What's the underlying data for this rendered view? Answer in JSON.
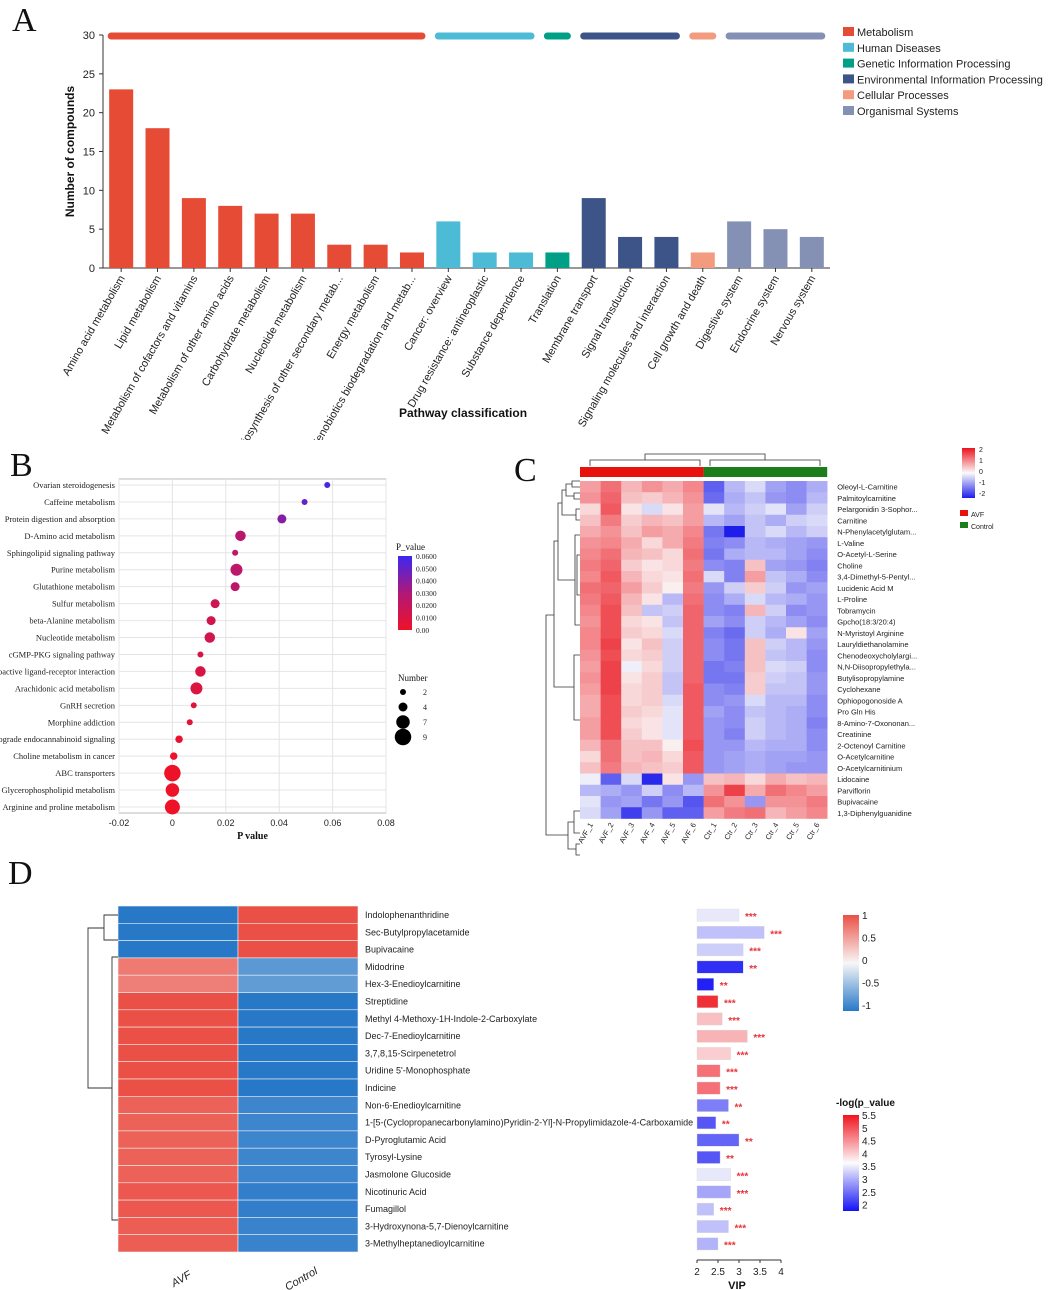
{
  "panels": {
    "A": "A",
    "B": "B",
    "C": "C",
    "D": "D"
  },
  "chart_data": [
    {
      "id": "A",
      "type": "bar",
      "ylabel": "Number of compounds",
      "xlabel": "Pathway classification",
      "ylim": [
        0,
        30
      ],
      "yticks": [
        0,
        5,
        10,
        15,
        20,
        25,
        30
      ],
      "categories": [
        "Amino acid metabolism",
        "Lipid metabolism",
        "Metabolism of cofactors and vitamins",
        "Metabolism of other amino acids",
        "Carbohydrate metabolism",
        "Nucleotide metabolism",
        "Biosynthesis of other secondary metab...",
        "Energy metabolism",
        "Xenobiotics biodegradation and metab...",
        "Cancer: overview",
        "Drug resistance: antineoplastic",
        "Substance dependence",
        "Translation",
        "Membrane transport",
        "Signal transduction",
        "Signaling molecules and interaction",
        "Cell growth and death",
        "Digestive system",
        "Endocrine system",
        "Nervous system"
      ],
      "values": [
        23,
        18,
        9,
        8,
        7,
        7,
        3,
        3,
        2,
        6,
        2,
        2,
        2,
        9,
        4,
        4,
        2,
        6,
        5,
        4
      ],
      "groups": [
        0,
        0,
        0,
        0,
        0,
        0,
        0,
        0,
        0,
        1,
        1,
        1,
        2,
        3,
        3,
        3,
        4,
        5,
        5,
        5
      ],
      "legend": [
        {
          "label": "Metabolism",
          "color": "#e64b35"
        },
        {
          "label": "Human Diseases",
          "color": "#4dbbd5"
        },
        {
          "label": "Genetic Information Processing",
          "color": "#00a087"
        },
        {
          "label": "Environmental Information Processing",
          "color": "#3c5488"
        },
        {
          "label": "Cellular Processes",
          "color": "#f39b7f"
        },
        {
          "label": "Organismal Systems",
          "color": "#8491b4"
        }
      ]
    },
    {
      "id": "B",
      "type": "scatter",
      "xlabel": "P value",
      "xlim": [
        -0.02,
        0.08
      ],
      "xticks": [
        "-0.02",
        "0",
        "0.02",
        "0.04",
        "0.06",
        "0.08"
      ],
      "categories": [
        "Ovarian steroidogenesis",
        "Caffeine metabolism",
        "Protein digestion and absorption",
        "D-Amino acid metabolism",
        "Sphingolipid signaling pathway",
        "Purine metabolism",
        "Glutathione metabolism",
        "Sulfur metabolism",
        "beta-Alanine metabolism",
        "Nucleotide metabolism",
        "cGMP-PKG signaling pathway",
        "Neuroactive ligand-receptor interaction",
        "Arachidonic acid metabolism",
        "GnRH secretion",
        "Morphine addiction",
        "Retrograde endocannabinoid signaling",
        "Choline metabolism in cancer",
        "ABC transporters",
        "Glycerophospholipid metabolism",
        "Arginine and proline metabolism"
      ],
      "pvalues": [
        0.058,
        0.0495,
        0.041,
        0.0255,
        0.0235,
        0.024,
        0.0235,
        0.016,
        0.0145,
        0.014,
        0.0105,
        0.0105,
        0.009,
        0.008,
        0.0065,
        0.0025,
        0.0005,
        0.0,
        0.0,
        0.0
      ],
      "numbers": [
        2,
        2,
        4,
        5,
        2,
        6,
        4,
        4,
        4,
        5,
        2,
        5,
        6,
        2,
        2,
        3,
        3,
        9,
        7,
        8
      ],
      "colorbar_title": "P_value",
      "colorbar_ticks": [
        "0.0600",
        "0.0500",
        "0.0400",
        "0.0300",
        "0.0200",
        "0.0100",
        "0.00"
      ],
      "size_legend_title": "Number",
      "size_legend": [
        2,
        4,
        7,
        9
      ]
    },
    {
      "id": "C",
      "type": "heatmap",
      "columns": [
        "AVF_1",
        "AVF_2",
        "AVF_3",
        "AVF_4",
        "AVF_5",
        "AVF_6",
        "Ctr_1",
        "Ctr_2",
        "Ctr_3",
        "Ctr_4",
        "Ctr_5",
        "Ctr_6"
      ],
      "groups": [
        {
          "label": "AVF",
          "color": "#e8120c"
        },
        {
          "label": "Control",
          "color": "#1b7d1b"
        }
      ],
      "colorbar_ticks": [
        "2",
        "1",
        "0",
        "-1",
        "-2"
      ],
      "rows": [
        "Oleoyl-L-Carnitine",
        "Palmitoylcarnitine",
        "Pelargonidin 3-Sophor...",
        "Carnitine",
        "N-Phenylacetylglutam...",
        "L-Valine",
        "O-Acetyl-L-Serine",
        "Choline",
        "3,4-Dimethyl-5-Pentyl...",
        "Lucidenic Acid M",
        "L-Proline",
        "Tobramycin",
        "Gpcho(18:3/20:4)",
        "N-Myristoyl Arginine",
        "Lauryldiethanolamine",
        "Chenodeoxycholylargi...",
        "N,N-Diisopropylethyla...",
        "Butylisopropylamine",
        "Cyclohexane",
        "Ophiopogonoside A",
        "Pro Gln His",
        "8-Amino-7-Oxononan...",
        "Creatinine",
        "2-Octenoyl Carnitine",
        "O-Acetylcarnitine",
        "O-Acetylcarnitinium",
        "Lidocaine",
        "Parviflorin",
        "Bupivacaine",
        "1,3-Diphenylguanidine"
      ],
      "values": [
        [
          0.8,
          1.2,
          0.6,
          0.9,
          0.7,
          1.0,
          -1.4,
          -0.6,
          -0.3,
          -0.8,
          -1.0,
          -0.7
        ],
        [
          0.9,
          1.3,
          0.5,
          0.4,
          0.6,
          0.9,
          -1.3,
          -0.7,
          -0.5,
          -0.9,
          -1.0,
          -0.6
        ],
        [
          0.3,
          1.4,
          0.2,
          -0.3,
          0.2,
          0.8,
          -0.2,
          -0.6,
          -0.4,
          -0.2,
          -0.8,
          -0.4
        ],
        [
          0.5,
          1.1,
          0.4,
          0.6,
          0.5,
          0.8,
          -0.6,
          -0.8,
          -0.5,
          -0.7,
          -0.4,
          -0.3
        ],
        [
          0.7,
          0.9,
          0.5,
          0.8,
          0.7,
          1.0,
          -1.2,
          -2.0,
          -0.5,
          -0.3,
          -0.6,
          -0.4
        ],
        [
          0.9,
          1.0,
          0.7,
          0.3,
          0.7,
          1.1,
          -1.1,
          -1.0,
          -0.6,
          -0.7,
          -0.8,
          -0.9
        ],
        [
          1.0,
          1.2,
          0.6,
          0.5,
          0.3,
          1.2,
          -1.2,
          -0.7,
          -0.6,
          -0.6,
          -0.8,
          -1.0
        ],
        [
          1.1,
          1.3,
          0.4,
          0.2,
          0.3,
          1.1,
          -1.0,
          -1.1,
          0.5,
          -0.8,
          -0.9,
          -1.1
        ],
        [
          1.0,
          1.4,
          0.6,
          0.3,
          0.2,
          1.2,
          -0.3,
          -1.1,
          0.8,
          -0.5,
          -0.7,
          -1.0
        ],
        [
          1.2,
          1.3,
          0.8,
          0.4,
          0.1,
          1.1,
          -0.9,
          -0.4,
          0.4,
          -0.4,
          -0.9,
          -0.8
        ],
        [
          1.1,
          1.4,
          0.6,
          0.2,
          -0.6,
          1.2,
          -1.0,
          -0.7,
          -0.3,
          -0.6,
          -0.7,
          -0.9
        ],
        [
          1.0,
          1.5,
          0.5,
          -0.5,
          -0.4,
          1.3,
          -1.0,
          -1.1,
          0.6,
          -0.4,
          -1.0,
          -0.9
        ],
        [
          0.9,
          1.5,
          0.3,
          0.2,
          -0.5,
          1.3,
          -0.8,
          -1.0,
          -0.4,
          -0.6,
          -0.8,
          -1.0
        ],
        [
          1.0,
          1.5,
          0.4,
          0.3,
          -0.3,
          1.3,
          -1.1,
          -1.3,
          -0.4,
          -0.7,
          0.2,
          -0.8
        ],
        [
          1.0,
          1.6,
          0.2,
          0.5,
          -0.4,
          1.3,
          -1.0,
          -1.2,
          0.5,
          -0.4,
          -0.6,
          -0.9
        ],
        [
          0.9,
          1.5,
          0.3,
          0.4,
          -0.4,
          1.3,
          -1.0,
          -1.2,
          0.5,
          -0.5,
          -0.6,
          -1.0
        ],
        [
          0.8,
          1.6,
          -0.1,
          0.3,
          -0.4,
          1.3,
          -1.2,
          -1.1,
          0.5,
          -0.3,
          -0.4,
          -1.0
        ],
        [
          0.9,
          1.6,
          0.2,
          0.4,
          -0.5,
          1.3,
          -1.2,
          -1.2,
          0.4,
          -0.4,
          -0.5,
          -0.9
        ],
        [
          0.8,
          1.6,
          0.3,
          0.4,
          -0.5,
          1.4,
          -1.0,
          -1.1,
          0.4,
          -0.5,
          -0.5,
          -0.9
        ],
        [
          0.7,
          1.5,
          0.3,
          0.4,
          -0.3,
          1.4,
          -1.0,
          -0.9,
          -0.3,
          -0.6,
          -0.6,
          -1.0
        ],
        [
          0.7,
          1.5,
          0.4,
          0.3,
          -0.2,
          1.4,
          -0.8,
          -1.0,
          -0.5,
          -0.6,
          -0.7,
          -1.0
        ],
        [
          0.8,
          1.5,
          0.3,
          0.2,
          -0.2,
          1.4,
          -0.9,
          -1.0,
          -0.4,
          -0.6,
          -0.7,
          -1.1
        ],
        [
          0.8,
          1.5,
          0.4,
          0.2,
          -0.2,
          1.4,
          -0.9,
          -1.1,
          -0.4,
          -0.6,
          -0.7,
          -1.0
        ],
        [
          0.6,
          1.2,
          0.5,
          0.5,
          0.1,
          1.5,
          -0.9,
          -0.9,
          -0.6,
          -0.7,
          -0.7,
          -1.0
        ],
        [
          0.3,
          1.2,
          0.5,
          0.6,
          0.3,
          1.4,
          -0.9,
          -0.8,
          -0.7,
          -0.8,
          -0.8,
          -0.9
        ],
        [
          0.5,
          1.1,
          0.6,
          0.5,
          0.4,
          1.4,
          -0.9,
          -0.8,
          -0.7,
          -0.8,
          -0.9,
          -0.9
        ],
        [
          -0.1,
          -1.4,
          -0.3,
          -1.9,
          0.2,
          -0.9,
          0.5,
          0.6,
          0.3,
          0.7,
          0.5,
          0.6
        ],
        [
          -0.6,
          -0.7,
          -0.9,
          -0.4,
          -1.0,
          -0.6,
          0.9,
          1.6,
          0.7,
          1.2,
          1.0,
          0.8
        ],
        [
          -0.2,
          -0.9,
          -0.8,
          -1.2,
          -0.9,
          -1.5,
          1.2,
          0.9,
          -0.9,
          0.9,
          0.9,
          1.1
        ],
        [
          -0.3,
          -0.8,
          -1.7,
          -0.9,
          -1.4,
          -1.4,
          0.8,
          1.1,
          1.2,
          0.6,
          0.8,
          1.0
        ]
      ]
    },
    {
      "id": "D",
      "type": "heatmap",
      "columns": [
        "AVF",
        "Control"
      ],
      "colorbar_ticks": [
        "1",
        "0.5",
        "0",
        "-0.5",
        "-1"
      ],
      "rows": [
        "Indolophenanthridine",
        "Sec-Butylpropylacetamide",
        "Bupivacaine",
        "Midodrine",
        "Hex-3-Enedioylcarnitine",
        "Streptidine",
        "Methyl 4-Methoxy-1H-Indole-2-Carboxylate",
        "Dec-7-Enedioylcarnitine",
        "3,7,8,15-Scirpenetetrol",
        "Uridine 5'-Monophosphate",
        "Indicine",
        "Non-6-Enedioylcarnitine",
        "1-[5-(Cyclopropanecarbonylamino)Pyridin-2-Yl]-N-Propylimidazole-4-Carboxamide",
        "D-Pyroglutamic Acid",
        "Tyrosyl-Lysine",
        "Jasmolone Glucoside",
        "Nicotinuric Acid",
        "Fumagillol",
        "3-Hydroxynona-5,7-Dienoylcarnitine",
        "3-Methylheptanedioylcarnitine"
      ],
      "heat": [
        -1,
        -1,
        -1,
        0.75,
        0.72,
        1,
        1,
        1,
        1,
        1,
        1,
        0.9,
        0.9,
        0.9,
        0.9,
        0.9,
        0.95,
        0.95,
        0.92,
        0.92
      ],
      "vip": [
        3.0,
        3.6,
        3.1,
        3.1,
        2.4,
        2.5,
        2.6,
        3.2,
        2.8,
        2.55,
        2.55,
        2.75,
        2.45,
        3.0,
        2.55,
        2.8,
        2.8,
        2.4,
        2.75,
        2.5
      ],
      "neglogp": [
        3.6,
        3.3,
        3.4,
        2.2,
        2.1,
        5.3,
        4.2,
        4.3,
        4.1,
        4.8,
        4.8,
        2.8,
        2.5,
        2.6,
        2.5,
        3.6,
        3.1,
        3.3,
        3.3,
        3.2
      ],
      "significance": [
        "***",
        "***",
        "***",
        "**",
        "**",
        "***",
        "***",
        "***",
        "***",
        "***",
        "***",
        "**",
        "**",
        "**",
        "**",
        "***",
        "***",
        "***",
        "***",
        "***"
      ],
      "vip_axis_label": "VIP",
      "vip_ticks": [
        "2",
        "2.5",
        "3",
        "3.5",
        "4"
      ],
      "pvalue_legend_title": "-log(p_value",
      "pvalue_ticks": [
        "5.5",
        "5",
        "4.5",
        "4",
        "3.5",
        "3",
        "2.5",
        "2"
      ]
    }
  ]
}
